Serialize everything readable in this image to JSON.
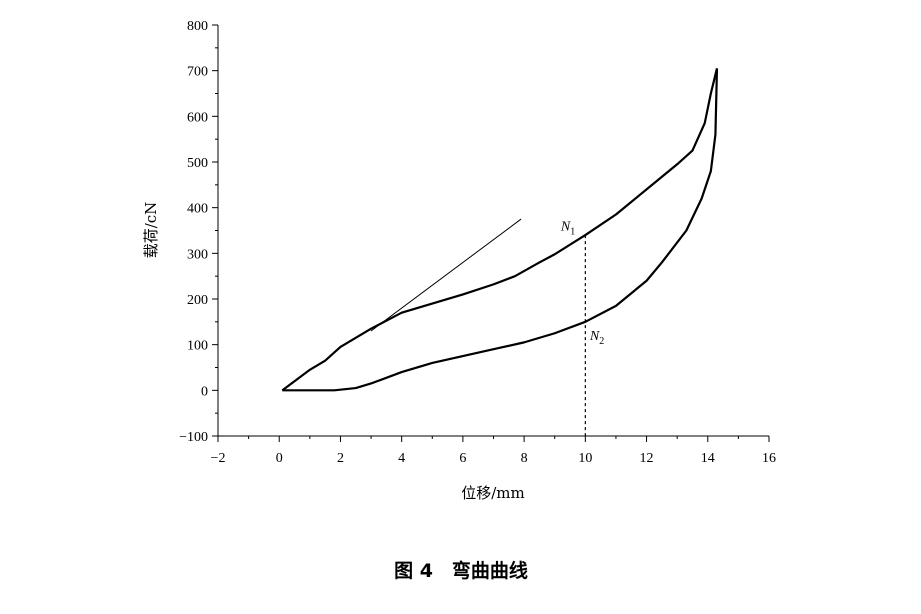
{
  "chart_data": {
    "type": "line",
    "x_label": "位移/mm",
    "y_label": "载荷/cN",
    "caption": "图 4　弯曲曲线",
    "xlim": [
      -2,
      16
    ],
    "xticks": [
      {
        "value": -2,
        "label": "−2"
      },
      0,
      2,
      4,
      6,
      8,
      10,
      12,
      14,
      16
    ],
    "ylim": [
      -100,
      800
    ],
    "yticks": [
      {
        "value": -100,
        "label": "−100"
      },
      0,
      100,
      200,
      300,
      400,
      500,
      600,
      700,
      800
    ],
    "series": [
      {
        "color": "#000000",
        "width": 2.2,
        "x": [
          0.1,
          0.5,
          1,
          1.5,
          2,
          3,
          4,
          5,
          6,
          7,
          7.7,
          8.5,
          9,
          10,
          11,
          12,
          13,
          13.5,
          13.9,
          14.1,
          14.3
        ],
        "values": [
          0,
          20,
          45,
          65,
          95,
          135,
          170,
          190,
          210,
          232,
          250,
          280,
          298,
          340,
          385,
          440,
          495,
          525,
          585,
          650,
          705
        ]
      },
      {
        "color": "#000000",
        "width": 2.2,
        "x": [
          14.3,
          14.25,
          14.1,
          13.8,
          13.3,
          12.5,
          12,
          11,
          10,
          9,
          8,
          7,
          6,
          5,
          4,
          3,
          2.5,
          1.8,
          0.1
        ],
        "values": [
          705,
          560,
          480,
          420,
          350,
          280,
          240,
          185,
          150,
          125,
          105,
          90,
          75,
          60,
          40,
          15,
          5,
          0,
          0
        ]
      },
      {
        "color": "#000000",
        "width": 1,
        "x": [
          3,
          7.9
        ],
        "values": [
          130,
          375
        ]
      },
      {
        "color": "#000000",
        "width": 1.2,
        "dashed": true,
        "x": [
          10,
          10
        ],
        "values": [
          340,
          -100
        ]
      }
    ],
    "annotations": [
      {
        "text": "N",
        "sub": "1",
        "x": 9.2,
        "y": 350
      },
      {
        "text": "N",
        "sub": "2",
        "x": 10.15,
        "y": 110
      }
    ]
  }
}
